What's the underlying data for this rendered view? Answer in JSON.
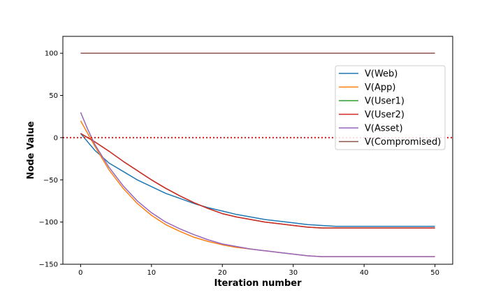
{
  "chart_data": {
    "type": "line",
    "title": "",
    "xlabel": "Iteration number",
    "ylabel": "Node Value",
    "xlim": [
      -2.5,
      52.5
    ],
    "ylim": [
      -150,
      120
    ],
    "x_ticks": [
      0,
      10,
      20,
      30,
      40,
      50
    ],
    "y_ticks": [
      100,
      50,
      0,
      -50,
      -100,
      -150
    ],
    "grid": false,
    "legend_position": "upper-right",
    "reference_line": {
      "y": 0,
      "style": "dotted",
      "color": "#e31a1c"
    },
    "series": [
      {
        "name": "V(Web)",
        "color": "#1f77b4",
        "x": [
          0,
          2,
          4,
          6,
          8,
          10,
          12,
          14,
          16,
          18,
          20,
          22,
          24,
          26,
          28,
          30,
          32,
          34,
          36,
          38,
          40,
          42,
          44,
          46,
          48,
          50
        ],
        "y": [
          5,
          -15,
          -30,
          -40,
          -50,
          -58,
          -66,
          -72,
          -78,
          -83,
          -87,
          -91,
          -94,
          -97,
          -99,
          -101,
          -103,
          -104,
          -105,
          -105,
          -105,
          -105,
          -105,
          -105,
          -105,
          -105
        ]
      },
      {
        "name": "V(App)",
        "color": "#ff7f0e",
        "x": [
          0,
          2,
          4,
          6,
          8,
          10,
          12,
          14,
          16,
          18,
          20,
          22,
          24,
          26,
          28,
          30,
          32,
          34,
          36,
          38,
          40,
          42,
          44,
          46,
          48,
          50
        ],
        "y": [
          20,
          -10,
          -38,
          -60,
          -78,
          -92,
          -103,
          -111,
          -118,
          -123,
          -127,
          -130,
          -132,
          -134,
          -136,
          -138,
          -140,
          -141,
          -141,
          -141,
          -141,
          -141,
          -141,
          -141,
          -141,
          -141
        ]
      },
      {
        "name": "V(User1)",
        "color": "#2ca02c",
        "x": [
          0,
          2,
          4,
          6,
          8,
          10,
          12,
          14,
          16,
          18,
          20,
          22,
          24,
          26,
          28,
          30,
          32,
          34,
          36,
          38,
          40,
          42,
          44,
          46,
          48,
          50
        ],
        "y": [
          5,
          -5,
          -16,
          -28,
          -39,
          -50,
          -60,
          -69,
          -77,
          -84,
          -90,
          -94,
          -97,
          -100,
          -102,
          -104,
          -106,
          -107,
          -107,
          -107,
          -107,
          -107,
          -107,
          -107,
          -107,
          -107
        ]
      },
      {
        "name": "V(User2)",
        "color": "#d62728",
        "x": [
          0,
          2,
          4,
          6,
          8,
          10,
          12,
          14,
          16,
          18,
          20,
          22,
          24,
          26,
          28,
          30,
          32,
          34,
          36,
          38,
          40,
          42,
          44,
          46,
          48,
          50
        ],
        "y": [
          5,
          -5,
          -16,
          -28,
          -39,
          -50,
          -60,
          -69,
          -77,
          -84,
          -90,
          -94,
          -97,
          -100,
          -102,
          -104,
          -106,
          -107,
          -107,
          -107,
          -107,
          -107,
          -107,
          -107,
          -107,
          -107
        ]
      },
      {
        "name": "V(Asset)",
        "color": "#9467bd",
        "x": [
          0,
          1,
          2,
          4,
          6,
          8,
          10,
          12,
          14,
          16,
          18,
          20,
          22,
          24,
          26,
          28,
          30,
          32,
          34,
          36,
          38,
          40,
          42,
          44,
          46,
          48,
          50
        ],
        "y": [
          30,
          10,
          -8,
          -35,
          -57,
          -75,
          -89,
          -100,
          -108,
          -115,
          -121,
          -126,
          -129,
          -132,
          -134,
          -136,
          -138,
          -140,
          -141,
          -141,
          -141,
          -141,
          -141,
          -141,
          -141,
          -141,
          -141
        ]
      },
      {
        "name": "V(Compromised)",
        "color": "#8c564b",
        "x": [
          0,
          50
        ],
        "y": [
          100,
          100
        ]
      }
    ]
  }
}
